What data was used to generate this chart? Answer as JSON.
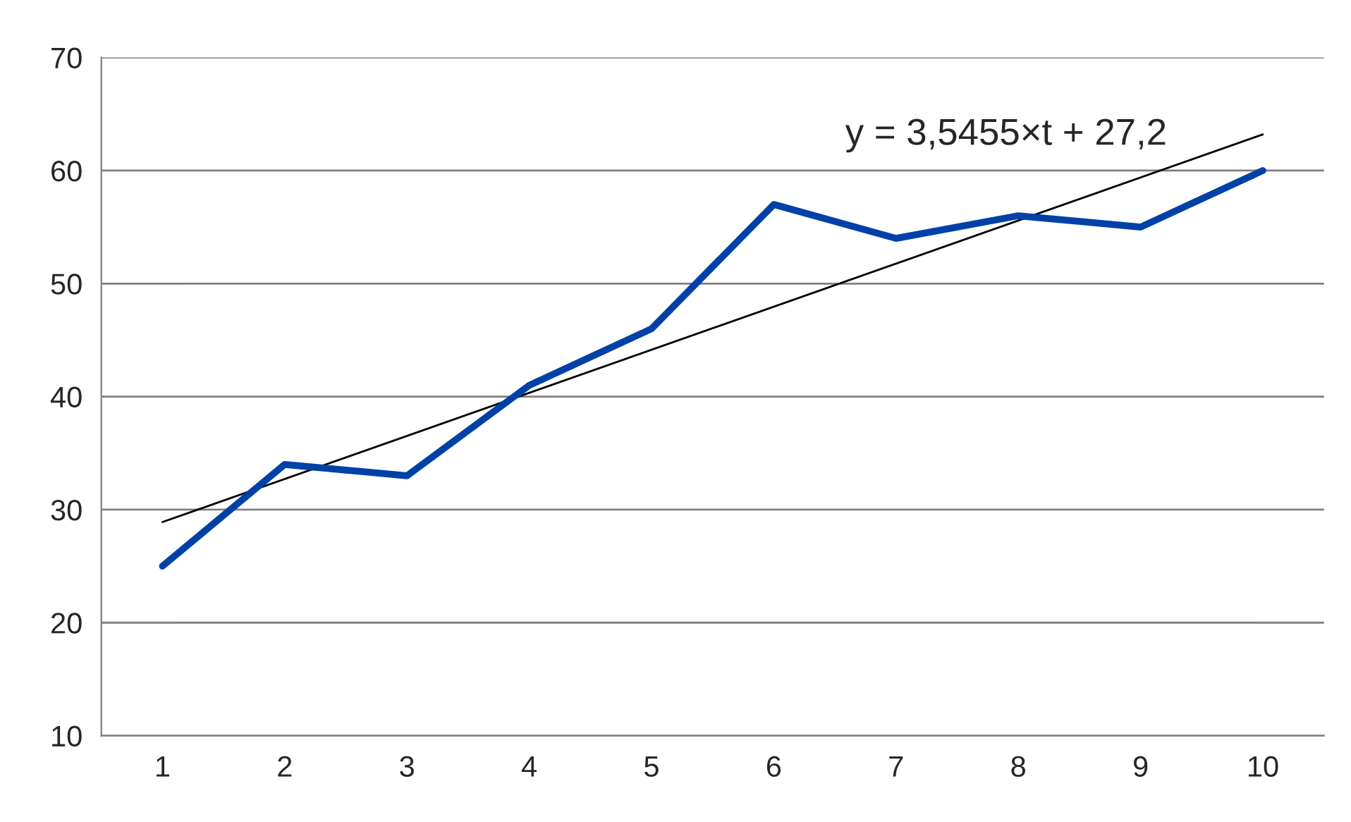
{
  "chart_data": {
    "type": "line",
    "x": [
      1,
      2,
      3,
      4,
      5,
      6,
      7,
      8,
      9,
      10
    ],
    "series": [
      {
        "color": "#0041a8",
        "values": [
          25,
          34,
          33,
          41,
          46,
          57,
          54,
          56,
          55,
          60
        ]
      },
      {
        "type": "line",
        "color": "#000000",
        "x": [
          1,
          10
        ],
        "values": [
          28.9,
          63.2
        ]
      }
    ],
    "xlim": [
      0.5,
      10.5
    ],
    "xticks": [
      1,
      2,
      3,
      4,
      5,
      6,
      7,
      8,
      9,
      10
    ],
    "ylim": [
      10,
      70
    ],
    "yticks": [
      10,
      20,
      30,
      40,
      50,
      60,
      70
    ],
    "grid": "y",
    "marker": "none",
    "line_style": "solid",
    "legend": false,
    "annotations": [
      "y = 3,5455×t + 27,2"
    ]
  }
}
